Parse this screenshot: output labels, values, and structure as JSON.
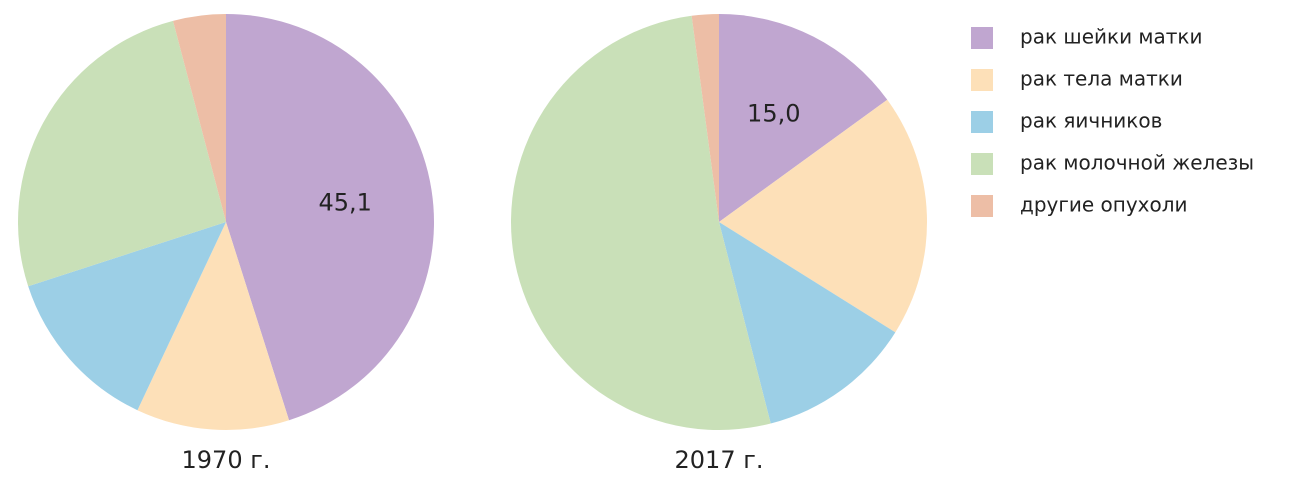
{
  "chart_data": [
    {
      "type": "pie",
      "title": "1970 г.",
      "categories": [
        "рак шейки матки",
        "рак тела матки",
        "рак яичников",
        "рак молочной железы",
        "другие опухоли"
      ],
      "values": [
        45.1,
        11.9,
        13.0,
        25.9,
        4.1
      ],
      "value_labels": [
        "45,1",
        null,
        null,
        null,
        null
      ],
      "colors": [
        "#c0a6d0",
        "#fde0b8",
        "#9ccfe6",
        "#c9e0b8",
        "#edbea6"
      ]
    },
    {
      "type": "pie",
      "title": "2017 г.",
      "categories": [
        "рак шейки матки",
        "рак тела матки",
        "рак яичников",
        "рак молочной железы",
        "другие опухоли"
      ],
      "values": [
        15.0,
        18.9,
        12.1,
        51.9,
        2.1
      ],
      "value_labels": [
        "15,0",
        null,
        null,
        null,
        null
      ],
      "colors": [
        "#c0a6d0",
        "#fde0b8",
        "#9ccfe6",
        "#c9e0b8",
        "#edbea6"
      ]
    }
  ]
}
